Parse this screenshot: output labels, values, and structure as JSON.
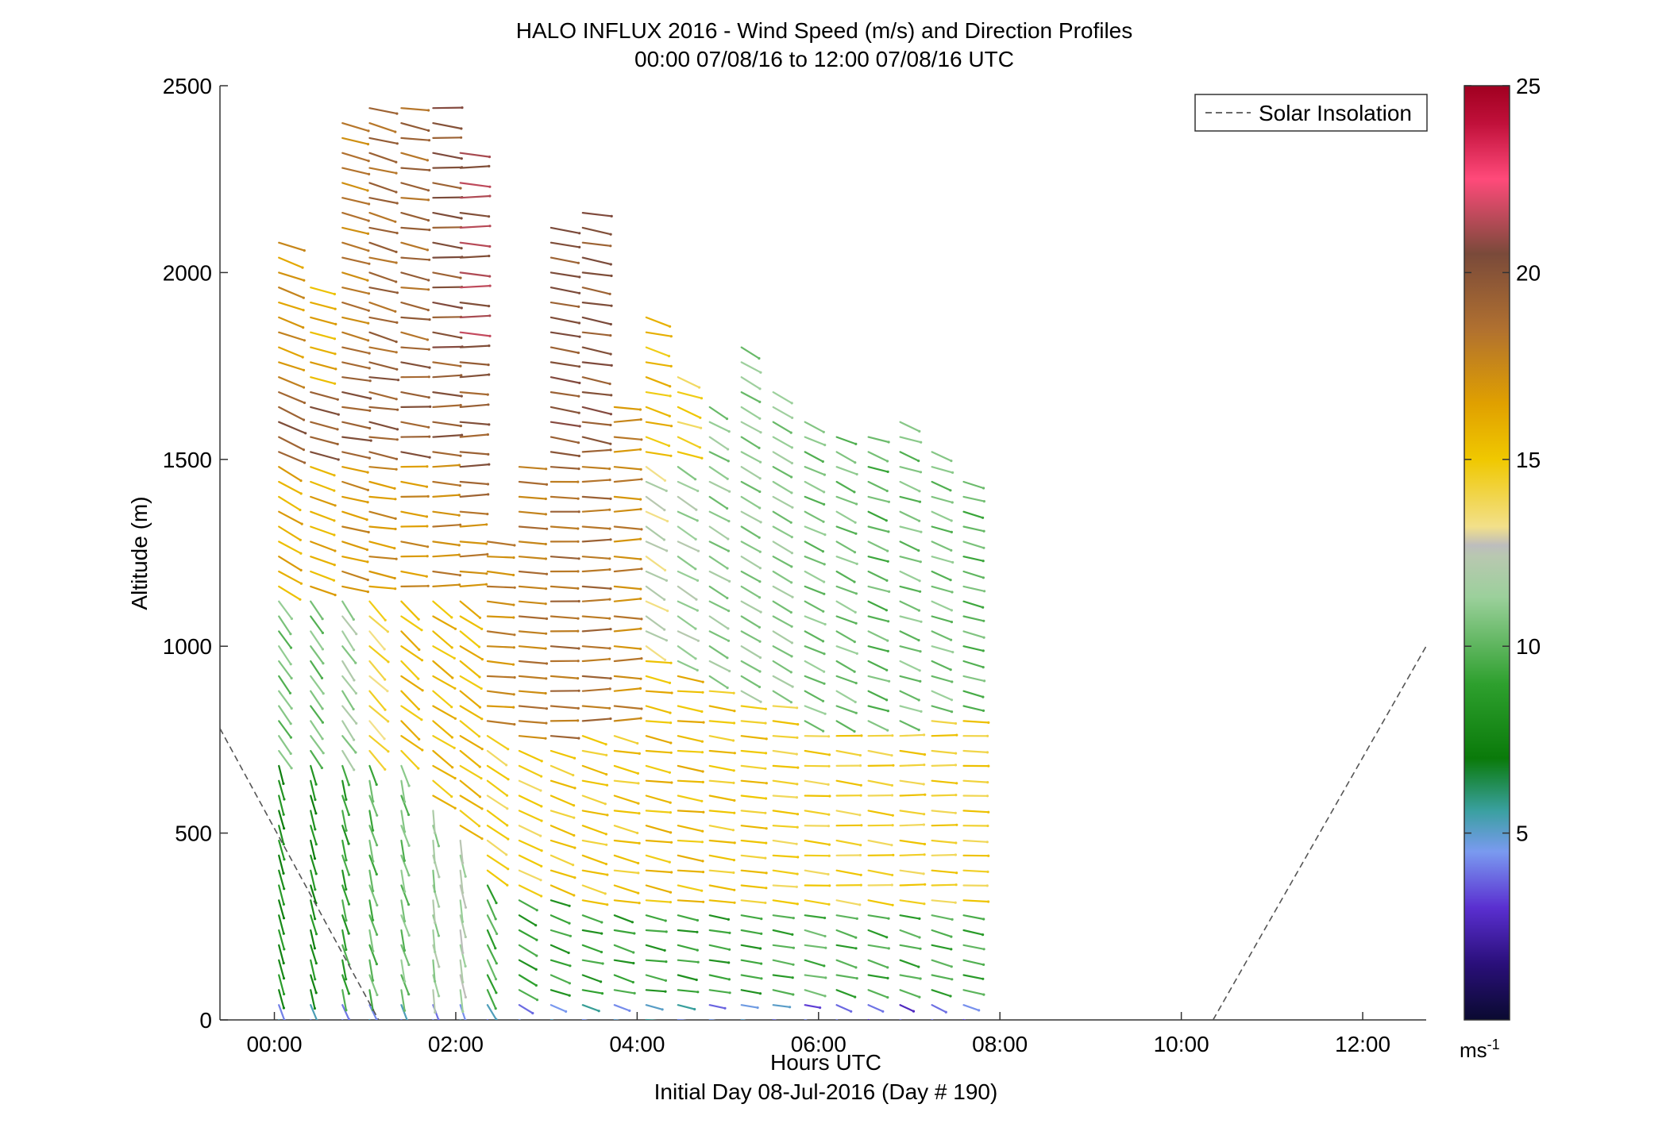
{
  "chart_data": {
    "type": "wind-barb-profile",
    "title": "HALO INFLUX 2016 - Wind Speed (m/s) and Direction Profiles",
    "subtitle": "00:00 07/08/16 to 12:00 07/08/16  UTC",
    "xlabel": "Hours UTC",
    "xlabel2": "Initial Day 08-Jul-2016 (Day # 190)",
    "ylabel": "Altitude (m)",
    "xlim_hours": [
      -0.6,
      12.7
    ],
    "ylim": [
      0,
      2500
    ],
    "x_ticks": [
      {
        "value": 0,
        "label": "00:00"
      },
      {
        "value": 2,
        "label": "02:00"
      },
      {
        "value": 4,
        "label": "04:00"
      },
      {
        "value": 6,
        "label": "06:00"
      },
      {
        "value": 8,
        "label": "08:00"
      },
      {
        "value": 10,
        "label": "10:00"
      },
      {
        "value": 12,
        "label": "12:00"
      }
    ],
    "y_ticks": [
      {
        "value": 0,
        "label": "0"
      },
      {
        "value": 500,
        "label": "500"
      },
      {
        "value": 1000,
        "label": "1000"
      },
      {
        "value": 1500,
        "label": "1500"
      },
      {
        "value": 2000,
        "label": "2000"
      },
      {
        "value": 2500,
        "label": "2500"
      }
    ],
    "legend": {
      "label": "Solar Insolation",
      "position": "top-right"
    },
    "solar_insolation_line": {
      "color": "#555555",
      "segments": [
        [
          [
            -0.6,
            780
          ],
          [
            1.15,
            0
          ]
        ],
        [
          [
            10.35,
            0
          ],
          [
            12.7,
            1000
          ]
        ]
      ]
    },
    "colorbar": {
      "min": 0,
      "max": 25,
      "ticks": [
        {
          "value": 5,
          "label": "5"
        },
        {
          "value": 10,
          "label": "10"
        },
        {
          "value": 15,
          "label": "15"
        },
        {
          "value": 20,
          "label": "20"
        },
        {
          "value": 25,
          "label": "25"
        }
      ],
      "unit_base": "ms",
      "unit_sup": "-1",
      "stops": [
        {
          "v": 0,
          "c": "#0a0a30"
        },
        {
          "v": 1.5,
          "c": "#2a0f7a"
        },
        {
          "v": 3,
          "c": "#5a2fd0"
        },
        {
          "v": 4.5,
          "c": "#7a9af0"
        },
        {
          "v": 5.6,
          "c": "#3aa0a0"
        },
        {
          "v": 7,
          "c": "#0a7a0a"
        },
        {
          "v": 9,
          "c": "#2ea02e"
        },
        {
          "v": 11.3,
          "c": "#9bd09b"
        },
        {
          "v": 12.4,
          "c": "#b8c8b0"
        },
        {
          "v": 12.7,
          "c": "#bdbdbd"
        },
        {
          "v": 13.2,
          "c": "#f2e08a"
        },
        {
          "v": 15,
          "c": "#f0c800"
        },
        {
          "v": 16.5,
          "c": "#e0a000"
        },
        {
          "v": 18.5,
          "c": "#b07030"
        },
        {
          "v": 20.5,
          "c": "#7a4a3a"
        },
        {
          "v": 22.5,
          "c": "#ff4a7a"
        },
        {
          "v": 24,
          "c": "#c0103a"
        },
        {
          "v": 25,
          "c": "#a00020"
        }
      ]
    },
    "profiles": {
      "note": "Wind vectors by profile: time in hours UTC, altitudes every 40 m starting at 0 m up to top_m; per-band speed (m/s) and direction (degrees, meteorological).",
      "altitude_step_m": 40,
      "columns": [
        {
          "time_h": 0.05,
          "top_m": 2100,
          "bands": [
            [
              0,
              60,
              4.5,
              340
            ],
            [
              60,
              700,
              8.0,
              345
            ],
            [
              700,
              1150,
              10.5,
              325
            ],
            [
              1150,
              1500,
              16.0,
              300
            ],
            [
              1500,
              1700,
              19.5,
              295
            ],
            [
              1700,
              2100,
              17.0,
              290
            ]
          ]
        },
        {
          "time_h": 0.4,
          "top_m": 1960,
          "bands": [
            [
              0,
              60,
              4.5,
              340
            ],
            [
              60,
              700,
              8.0,
              345
            ],
            [
              700,
              1150,
              10.5,
              325
            ],
            [
              1150,
              1500,
              16.0,
              290
            ],
            [
              1500,
              1700,
              19.5,
              285
            ],
            [
              1700,
              1960,
              16.0,
              285
            ]
          ]
        },
        {
          "time_h": 0.75,
          "top_m": 2400,
          "bands": [
            [
              0,
              60,
              4.5,
              340
            ],
            [
              60,
              700,
              9.0,
              345
            ],
            [
              700,
              1150,
              11.5,
              325
            ],
            [
              1150,
              1500,
              17.0,
              285
            ],
            [
              1500,
              1800,
              19.5,
              280
            ],
            [
              1800,
              2400,
              18.0,
              285
            ]
          ]
        },
        {
          "time_h": 1.05,
          "top_m": 2460,
          "bands": [
            [
              0,
              60,
              4.5,
              340
            ],
            [
              60,
              700,
              10.0,
              345
            ],
            [
              700,
              1150,
              14.0,
              315
            ],
            [
              1150,
              1500,
              17.0,
              280
            ],
            [
              1500,
              1800,
              19.5,
              280
            ],
            [
              1800,
              2460,
              19.0,
              285
            ]
          ]
        },
        {
          "time_h": 1.4,
          "top_m": 2460,
          "bands": [
            [
              0,
              60,
              4.5,
              345
            ],
            [
              60,
              700,
              10.5,
              345
            ],
            [
              700,
              1150,
              15.5,
              310
            ],
            [
              1150,
              1500,
              17.0,
              275
            ],
            [
              1500,
              1800,
              19.5,
              275
            ],
            [
              1800,
              2460,
              19.0,
              280
            ]
          ]
        },
        {
          "time_h": 1.75,
          "top_m": 2460,
          "bands": [
            [
              0,
              60,
              4.5,
              345
            ],
            [
              60,
              600,
              11.5,
              350
            ],
            [
              600,
              1150,
              15.5,
              305
            ],
            [
              1150,
              1500,
              17.5,
              272
            ],
            [
              1500,
              1800,
              19.5,
              272
            ],
            [
              1800,
              2460,
              20.0,
              275
            ]
          ]
        },
        {
          "time_h": 2.05,
          "top_m": 2320,
          "bands": [
            [
              0,
              60,
              4.5,
              345
            ],
            [
              60,
              500,
              12.0,
              350
            ],
            [
              500,
              1150,
              15.5,
              305
            ],
            [
              1150,
              1400,
              17.5,
              270
            ],
            [
              1400,
              1800,
              19.5,
              270
            ],
            [
              1800,
              2320,
              21.0,
              272
            ]
          ]
        },
        {
          "time_h": 2.35,
          "top_m": 1300,
          "bands": [
            [
              0,
              60,
              4.5,
              330
            ],
            [
              60,
              400,
              9.5,
              335
            ],
            [
              400,
              800,
              14.5,
              305
            ],
            [
              800,
              1300,
              17.5,
              275
            ]
          ]
        },
        {
          "time_h": 2.7,
          "top_m": 1500,
          "bands": [
            [
              0,
              60,
              4.5,
              300
            ],
            [
              60,
              350,
              9.0,
              300
            ],
            [
              350,
              750,
              14.5,
              295
            ],
            [
              750,
              1500,
              18.0,
              275
            ]
          ]
        },
        {
          "time_h": 3.05,
          "top_m": 2120,
          "bands": [
            [
              0,
              60,
              4.5,
              290
            ],
            [
              60,
              350,
              9.0,
              290
            ],
            [
              350,
              750,
              15.0,
              290
            ],
            [
              750,
              1500,
              18.5,
              272
            ],
            [
              1500,
              2120,
              20.0,
              280
            ]
          ]
        },
        {
          "time_h": 3.4,
          "top_m": 2180,
          "bands": [
            [
              0,
              60,
              5.0,
              285
            ],
            [
              60,
              300,
              9.0,
              285
            ],
            [
              300,
              800,
              15.0,
              285
            ],
            [
              800,
              1550,
              18.5,
              270
            ],
            [
              1550,
              2180,
              20.0,
              280
            ]
          ]
        },
        {
          "time_h": 3.75,
          "top_m": 1640,
          "bands": [
            [
              0,
              60,
              5.0,
              285
            ],
            [
              60,
              300,
              9.0,
              285
            ],
            [
              300,
              800,
              15.0,
              282
            ],
            [
              800,
              1640,
              17.5,
              270
            ]
          ]
        },
        {
          "time_h": 4.1,
          "top_m": 1880,
          "bands": [
            [
              0,
              60,
              5.0,
              280
            ],
            [
              60,
              300,
              9.0,
              280
            ],
            [
              300,
              1000,
              15.5,
              280
            ],
            [
              1000,
              1500,
              12.5,
              300
            ],
            [
              1500,
              1880,
              15.5,
              285
            ]
          ]
        },
        {
          "time_h": 4.45,
          "top_m": 1720,
          "bands": [
            [
              0,
              60,
              5.0,
              280
            ],
            [
              60,
              300,
              9.0,
              280
            ],
            [
              300,
              950,
              15.5,
              278
            ],
            [
              950,
              1500,
              11.5,
              300
            ],
            [
              1500,
              1720,
              14.5,
              290
            ]
          ]
        },
        {
          "time_h": 4.8,
          "top_m": 1640,
          "bands": [
            [
              0,
              60,
              4.5,
              280
            ],
            [
              60,
              300,
              9.0,
              280
            ],
            [
              300,
              900,
              15.0,
              278
            ],
            [
              900,
              1640,
              11.0,
              300
            ]
          ]
        },
        {
          "time_h": 5.15,
          "top_m": 1810,
          "bands": [
            [
              0,
              60,
              4.5,
              280
            ],
            [
              60,
              300,
              9.0,
              280
            ],
            [
              300,
              850,
              15.0,
              276
            ],
            [
              850,
              1810,
              11.0,
              300
            ]
          ]
        },
        {
          "time_h": 5.5,
          "top_m": 1700,
          "bands": [
            [
              0,
              60,
              4.5,
              280
            ],
            [
              60,
              300,
              9.5,
              280
            ],
            [
              300,
              850,
              14.5,
              276
            ],
            [
              850,
              1700,
              11.0,
              300
            ]
          ]
        },
        {
          "time_h": 5.85,
          "top_m": 1620,
          "bands": [
            [
              0,
              60,
              4.0,
              285
            ],
            [
              60,
              320,
              10.0,
              282
            ],
            [
              320,
              800,
              14.5,
              275
            ],
            [
              800,
              1620,
              10.5,
              295
            ]
          ]
        },
        {
          "time_h": 6.2,
          "top_m": 1580,
          "bands": [
            [
              0,
              60,
              3.5,
              300
            ],
            [
              60,
              320,
              9.5,
              285
            ],
            [
              320,
              800,
              14.5,
              275
            ],
            [
              800,
              1580,
              10.5,
              295
            ]
          ]
        },
        {
          "time_h": 6.55,
          "top_m": 1560,
          "bands": [
            [
              0,
              60,
              3.5,
              300
            ],
            [
              60,
              320,
              9.5,
              285
            ],
            [
              320,
              800,
              14.5,
              275
            ],
            [
              800,
              1560,
              10.0,
              290
            ]
          ]
        },
        {
          "time_h": 6.9,
          "top_m": 1600,
          "bands": [
            [
              0,
              60,
              3.5,
              300
            ],
            [
              60,
              320,
              9.5,
              285
            ],
            [
              320,
              800,
              14.5,
              273
            ],
            [
              800,
              1600,
              10.5,
              290
            ]
          ]
        },
        {
          "time_h": 7.25,
          "top_m": 1520,
          "bands": [
            [
              0,
              60,
              3.5,
              300
            ],
            [
              60,
              320,
              9.5,
              285
            ],
            [
              320,
              820,
              14.5,
              272
            ],
            [
              820,
              1520,
              10.5,
              290
            ]
          ]
        },
        {
          "time_h": 7.6,
          "top_m": 1460,
          "bands": [
            [
              0,
              60,
              4.0,
              290
            ],
            [
              60,
              320,
              9.5,
              282
            ],
            [
              320,
              820,
              14.5,
              272
            ],
            [
              820,
              1460,
              10.0,
              285
            ]
          ]
        }
      ]
    }
  }
}
